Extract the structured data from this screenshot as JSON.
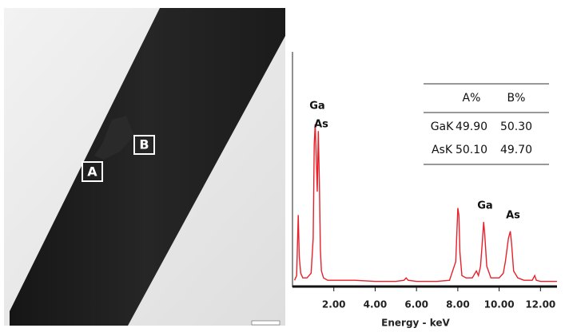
{
  "image": {
    "labels": [
      "A",
      "B"
    ]
  },
  "chart_data": {
    "type": "line",
    "x": [
      0.1,
      0.2,
      0.28,
      0.33,
      0.4,
      0.5,
      0.7,
      0.9,
      1.0,
      1.05,
      1.1,
      1.15,
      1.2,
      1.25,
      1.3,
      1.35,
      1.4,
      1.5,
      1.7,
      2.0,
      3,
      4,
      5,
      5.4,
      5.5,
      5.6,
      6,
      7,
      7.6,
      7.9,
      8.0,
      8.05,
      8.1,
      8.2,
      8.4,
      8.7,
      8.9,
      9.0,
      9.1,
      9.2,
      9.25,
      9.3,
      9.4,
      9.6,
      10.0,
      10.2,
      10.3,
      10.45,
      10.54,
      10.6,
      10.7,
      10.9,
      11.2,
      11.6,
      11.72,
      11.8,
      12.0,
      12.8
    ],
    "values": [
      2,
      4,
      30,
      12,
      5,
      3,
      3,
      5,
      20,
      60,
      69,
      55,
      40,
      66,
      45,
      15,
      6,
      3,
      2,
      2,
      2,
      1.5,
      1.5,
      2,
      3,
      2,
      1.5,
      1.5,
      2,
      10,
      33,
      30,
      14,
      4,
      3,
      3,
      6,
      4,
      8,
      20,
      27,
      22,
      8,
      3,
      3,
      5,
      10,
      20,
      23,
      18,
      6,
      3,
      2,
      2,
      4,
      2,
      1.5,
      1.5
    ],
    "color": "#e8202a",
    "xlim": [
      0,
      12.8
    ],
    "ylim": [
      0,
      100
    ],
    "xticks": [
      {
        "value": 2,
        "label": "2.00"
      },
      {
        "value": 4,
        "label": "4.00"
      },
      {
        "value": 6,
        "label": "6.00"
      },
      {
        "value": 8,
        "label": "8.00"
      },
      {
        "value": 10,
        "label": "10.00"
      },
      {
        "value": 12,
        "label": "12.00"
      }
    ],
    "x_label": "Energy - keV",
    "annotations": [
      "Ga",
      "As",
      "Ga",
      "As"
    ],
    "table": {
      "columns": [
        "A%",
        "B%"
      ],
      "rows": [
        [
          "GaK",
          "49.90",
          "50.30"
        ],
        [
          "AsK",
          "50.10",
          "49.70"
        ]
      ]
    }
  }
}
